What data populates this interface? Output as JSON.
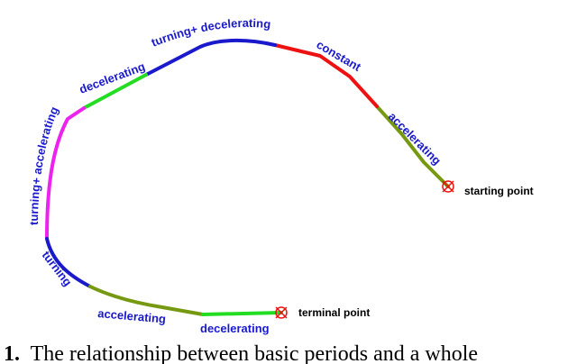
{
  "diagram": {
    "colors": {
      "blue": "#1a1acc",
      "red": "#ee1111",
      "green": "#22dd22",
      "olive": "#779911",
      "magenta": "#ee22ee",
      "label": "#1a1acc",
      "marker": "#ee1111"
    },
    "segments": [
      {
        "label": "accelerating",
        "color": "olive"
      },
      {
        "label": "constant",
        "color": "red"
      },
      {
        "label": "turning+ decelerating",
        "color": "blue"
      },
      {
        "label": "decelerating",
        "color": "green"
      },
      {
        "label": "turning+ accelerating",
        "color": "magenta"
      },
      {
        "label": "turning",
        "color": "blue"
      },
      {
        "label": "accelerating",
        "color": "olive"
      },
      {
        "label": "decelerating",
        "color": "green"
      }
    ],
    "start_label": "starting point",
    "end_label": "terminal point"
  },
  "caption": {
    "number": "1.",
    "text": "The relationship between basic periods and a whole"
  }
}
